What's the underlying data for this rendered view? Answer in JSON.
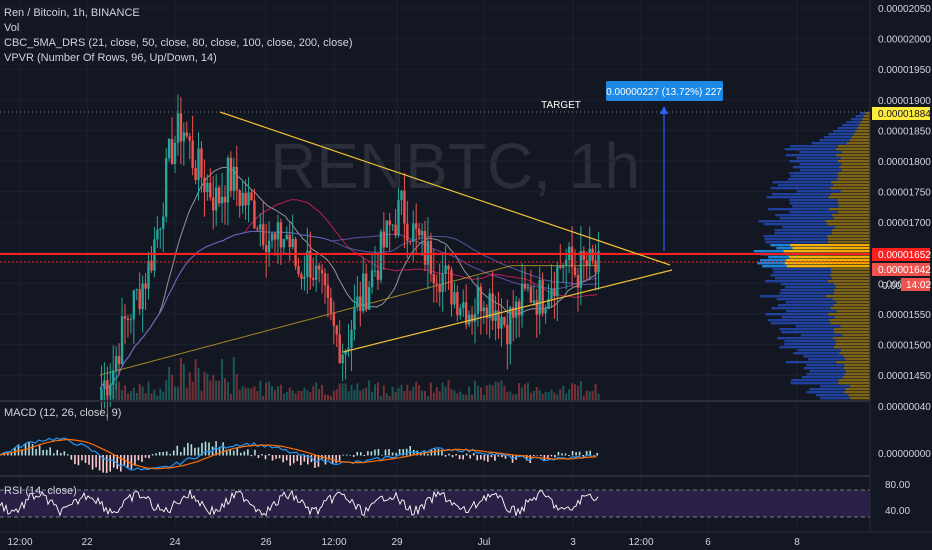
{
  "legend": {
    "symbol": "Ren / Bitcoin, 1h, BINANCE",
    "vol": "Vol",
    "ma": "CBC_5MA_DRS (21, close, 50, close, 80, close, 100, close, 200, close)",
    "vpvr": "VPVR (Number Of Rows, 96, Up/Down, 14)"
  },
  "watermark": "RENBTC, 1h",
  "annotations": {
    "target_label": "TARGET",
    "measure_label": "0.00000227 (13.72%) 227"
  },
  "price_axis": {
    "ticks": [
      "0.00002050",
      "0.00002000",
      "0.00001950",
      "0.00001900",
      "0.00001850",
      "0.00001800",
      "0.00001750",
      "0.00001700",
      "0.00001650",
      "0.00001600",
      "0.00001550",
      "0.00001500",
      "0.00001450"
    ],
    "badges": {
      "target": "0.00001884",
      "last": "0.00001652",
      "current": "0.00001642",
      "countdown": "14:02",
      "partial": "0.000"
    }
  },
  "macd": {
    "label": "MACD (12, 26, close, 9)",
    "ticks": [
      "0.00000040",
      "0.00000000"
    ]
  },
  "rsi": {
    "label": "RSI (14, close)",
    "ticks": [
      "80.00",
      "40.00"
    ]
  },
  "time_axis": [
    "12:00",
    "22",
    "24",
    "26",
    "12:00",
    "29",
    "Jul",
    "3",
    "12:00",
    "6",
    "8"
  ],
  "colors": {
    "background": "#131722",
    "up": "#26a69a",
    "down": "#ef5350",
    "triangle": "#f0c030",
    "support_red": "#ff1e1e",
    "measure": "#2962ff",
    "target_badge": "#ffeb3b",
    "macd_line": "#2196f3",
    "signal_line": "#ff6d00",
    "rsi_line": "#ffffff",
    "rsi_band": "#2a1f44"
  },
  "chart_data": {
    "type": "candlestick",
    "title": "Ren / Bitcoin, 1h, BINANCE",
    "y_range": [
      1.42e-05,
      2.07e-05
    ],
    "target_price": 1.884e-05,
    "last_price": 1.652e-05,
    "current_price": 1.642e-05,
    "triangle": {
      "upper_start": 1.88e-05,
      "upper_end": 1.62e-05,
      "lower_start": 1.49e-05,
      "lower_end": 1.61e-05
    },
    "close_path": [
      1.46e-05,
      1.49e-05,
      1.56e-05,
      1.6e-05,
      1.64e-05,
      1.72e-05,
      1.83e-05,
      1.87e-05,
      1.81e-05,
      1.78e-05,
      1.75e-05,
      1.79e-05,
      1.76e-05,
      1.74e-05,
      1.71e-05,
      1.68e-05,
      1.7e-05,
      1.64e-05,
      1.66e-05,
      1.61e-05,
      1.55e-05,
      1.52e-05,
      1.58e-05,
      1.62e-05,
      1.66e-05,
      1.71e-05,
      1.74e-05,
      1.7e-05,
      1.67e-05,
      1.65e-05,
      1.62e-05,
      1.6e-05,
      1.58e-05,
      1.61e-05,
      1.59e-05,
      1.56e-05,
      1.58e-05,
      1.61e-05,
      1.6e-05,
      1.63e-05,
      1.66e-05,
      1.64e-05,
      1.65e-05,
      1.64e-05
    ]
  }
}
